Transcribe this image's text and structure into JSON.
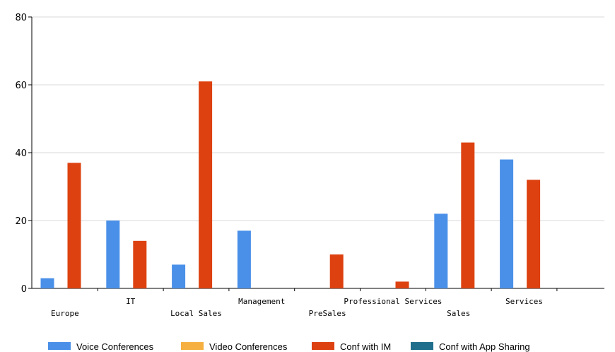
{
  "chart_data": {
    "type": "bar",
    "title": "",
    "xlabel": "",
    "ylabel": "",
    "ylim": [
      0,
      80
    ],
    "yticks": [
      0,
      20,
      40,
      60,
      80
    ],
    "grid": true,
    "legend_position": "bottom",
    "categories": [
      "Europe",
      "IT",
      "Local Sales",
      "Management",
      "PreSales",
      "Professional Services",
      "Sales",
      "Services"
    ],
    "series": [
      {
        "name": "Voice Conferences",
        "color": "#4a90e8",
        "values": [
          3,
          20,
          7,
          17,
          0,
          0,
          22,
          38
        ]
      },
      {
        "name": "Video Conferences",
        "color": "#f5b041",
        "values": [
          0,
          0,
          0,
          0,
          0,
          0,
          0,
          0
        ]
      },
      {
        "name": "Conf with IM",
        "color": "#dd4110",
        "values": [
          37,
          14,
          61,
          0,
          10,
          2,
          43,
          32
        ]
      },
      {
        "name": "Conf with App Sharing",
        "color": "#1f6e8c",
        "values": [
          0,
          0,
          0,
          0,
          0,
          0,
          0,
          0
        ]
      }
    ]
  }
}
